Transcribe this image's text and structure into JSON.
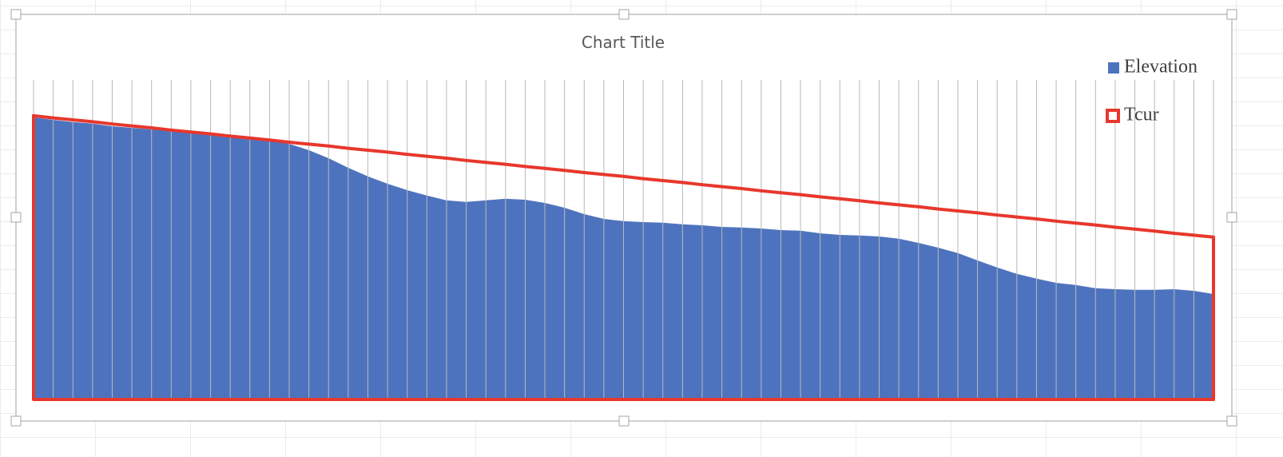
{
  "chart_data": {
    "type": "area",
    "title": "Chart Title",
    "categories": [
      null,
      null,
      null,
      null,
      null,
      null,
      null,
      null,
      null,
      null,
      null,
      null,
      null,
      null,
      null,
      null,
      null,
      null,
      null,
      null,
      null,
      null,
      null,
      null,
      null,
      null,
      null,
      null,
      null,
      null,
      null,
      null,
      null,
      null,
      null,
      null,
      null,
      null,
      null,
      null,
      null,
      null,
      null,
      null,
      null,
      null,
      null,
      null,
      null,
      null,
      null,
      null,
      null,
      null,
      null,
      null,
      null,
      null,
      null,
      null,
      null
    ],
    "series": [
      {
        "name": "Elevation",
        "color": "#4e73be",
        "filled": true,
        "values": [
          88.3,
          87.5,
          86.8,
          86.3,
          85.5,
          85,
          84.5,
          84,
          83.5,
          83,
          82.5,
          82,
          81.3,
          80,
          78,
          75.5,
          72.5,
          69.8,
          67.5,
          65.5,
          63.8,
          62.3,
          61.8,
          62.3,
          62.8,
          62.5,
          61.5,
          60,
          58,
          56.5,
          55.8,
          55.5,
          55.3,
          54.8,
          54.5,
          54,
          53.8,
          53.5,
          53,
          52.8,
          52,
          51.5,
          51.3,
          51,
          50.3,
          49,
          47.5,
          45.8,
          43.5,
          41.3,
          39.3,
          37.8,
          36.5,
          35.8,
          34.8,
          34.5,
          34.3,
          34.3,
          34.5,
          34,
          33
        ]
      },
      {
        "name": "Tcur",
        "color": "#e8372c",
        "filled": false,
        "values": [
          88.8,
          88.1,
          87.5,
          86.9,
          86.2,
          85.6,
          85.0,
          84.3,
          83.7,
          83.1,
          82.4,
          81.8,
          81.2,
          80.5,
          79.9,
          79.3,
          78.6,
          78.0,
          77.4,
          76.7,
          76.1,
          75.5,
          74.8,
          74.2,
          73.6,
          72.9,
          72.3,
          71.7,
          71.0,
          70.4,
          69.8,
          69.1,
          68.5,
          67.9,
          67.2,
          66.6,
          66.0,
          65.3,
          64.7,
          64.1,
          63.4,
          62.8,
          62.2,
          61.5,
          60.9,
          60.3,
          59.6,
          59.0,
          58.4,
          57.7,
          57.1,
          56.5,
          55.8,
          55.2,
          54.6,
          53.9,
          53.3,
          52.7,
          52.0,
          51.4,
          50.8
        ]
      }
    ],
    "ylim": [
      0,
      100
    ],
    "x_grid": true,
    "legend": "top-right"
  }
}
